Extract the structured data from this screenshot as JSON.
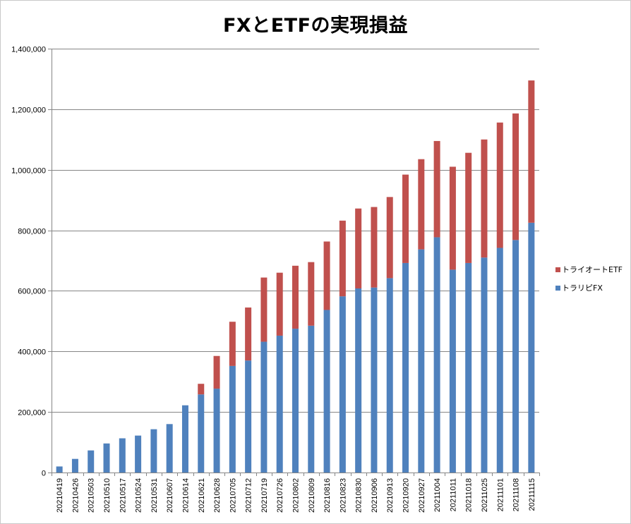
{
  "chart_data": {
    "type": "bar",
    "stacked": true,
    "title": "FXとETFの実現損益",
    "xlabel": "",
    "ylabel": "",
    "ylim": [
      0,
      1400000
    ],
    "y_ticks": [
      0,
      200000,
      400000,
      600000,
      800000,
      1000000,
      1200000,
      1400000
    ],
    "y_tick_labels": [
      "0",
      "200,000",
      "400,000",
      "600,000",
      "800,000",
      "1,000,000",
      "1,200,000",
      "1,400,000"
    ],
    "grid": true,
    "legend_position": "right",
    "categories": [
      "20210419",
      "20210426",
      "20210503",
      "20210510",
      "20210517",
      "20210524",
      "20210531",
      "20210607",
      "20210614",
      "20210621",
      "20210628",
      "20210705",
      "20210712",
      "20210719",
      "20210726",
      "20210802",
      "20210809",
      "20210816",
      "20210823",
      "20210830",
      "20210906",
      "20210913",
      "20210920",
      "20210927",
      "20211004",
      "20211011",
      "20211018",
      "20211025",
      "20211101",
      "20211108",
      "20211115"
    ],
    "series": [
      {
        "name": "トラリピFX",
        "color": "#4f81bd",
        "values": [
          20000,
          45000,
          73000,
          96000,
          113000,
          122000,
          143000,
          160000,
          222000,
          258000,
          277000,
          352000,
          370000,
          432000,
          452000,
          475000,
          485000,
          537000,
          582000,
          608000,
          611000,
          642000,
          692000,
          737000,
          777000,
          670000,
          692000,
          710000,
          742000,
          768000,
          825000
        ]
      },
      {
        "name": "トライオートETF",
        "color": "#c0504d",
        "values": [
          0,
          0,
          0,
          0,
          0,
          0,
          0,
          0,
          0,
          35000,
          108000,
          146000,
          175000,
          212000,
          208000,
          208000,
          210000,
          226000,
          250000,
          264000,
          266000,
          268000,
          292000,
          298000,
          318000,
          340000,
          364000,
          390000,
          414000,
          418000,
          470000
        ]
      }
    ]
  }
}
